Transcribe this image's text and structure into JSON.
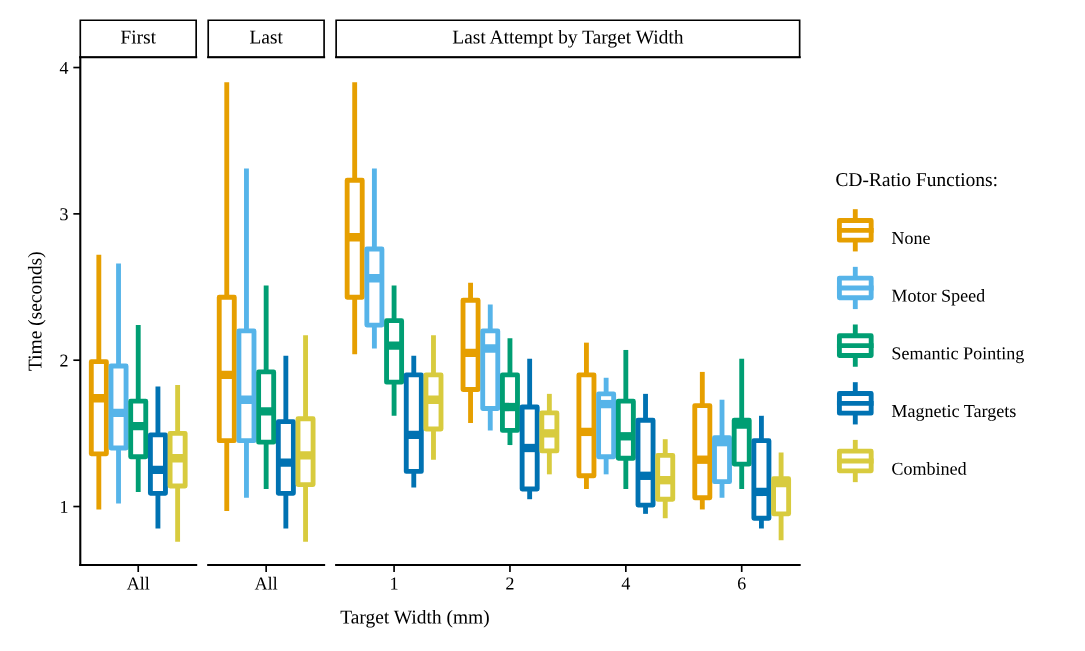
{
  "chart_data": [
    {
      "type": "box",
      "title": "First",
      "ylabel": "Time (seconds)",
      "categories": [
        "All"
      ],
      "ylim": [
        0.6,
        4.07
      ],
      "yticks": [
        1,
        2,
        3,
        4
      ],
      "legend": "right",
      "legend_title": "CD-Ratio Functions:",
      "series": [
        {
          "name": "None",
          "color": "#e69f00",
          "boxes": [
            {
              "low": 0.98,
              "q1": 1.36,
              "median": 1.74,
              "q3": 1.99,
              "high": 2.72
            }
          ]
        },
        {
          "name": "Motor Speed",
          "color": "#56b4e9",
          "boxes": [
            {
              "low": 1.02,
              "q1": 1.4,
              "median": 1.64,
              "q3": 1.96,
              "high": 2.66
            }
          ]
        },
        {
          "name": "Semantic Pointing",
          "color": "#009e73",
          "boxes": [
            {
              "low": 1.1,
              "q1": 1.34,
              "median": 1.55,
              "q3": 1.72,
              "high": 2.24
            }
          ]
        },
        {
          "name": "Magnetic Targets",
          "color": "#0072b2",
          "boxes": [
            {
              "low": 0.85,
              "q1": 1.09,
              "median": 1.25,
              "q3": 1.49,
              "high": 1.82
            }
          ]
        },
        {
          "name": "Combined",
          "color": "#d8cb3e",
          "boxes": [
            {
              "low": 0.76,
              "q1": 1.14,
              "median": 1.33,
              "q3": 1.5,
              "high": 1.83
            }
          ]
        }
      ]
    },
    {
      "type": "box",
      "title": "Last",
      "categories": [
        "All"
      ],
      "ylim": [
        0.6,
        4.07
      ],
      "tick_labels": "x",
      "series": [
        {
          "color": "#e69f00",
          "boxes": [
            {
              "low": 0.97,
              "q1": 1.45,
              "median": 1.9,
              "q3": 2.43,
              "high": 3.9
            }
          ]
        },
        {
          "color": "#56b4e9",
          "boxes": [
            {
              "low": 1.06,
              "q1": 1.45,
              "median": 1.73,
              "q3": 2.2,
              "high": 3.31
            }
          ]
        },
        {
          "color": "#009e73",
          "boxes": [
            {
              "low": 1.12,
              "q1": 1.44,
              "median": 1.65,
              "q3": 1.92,
              "high": 2.51
            }
          ]
        },
        {
          "color": "#0072b2",
          "boxes": [
            {
              "low": 0.85,
              "q1": 1.09,
              "median": 1.3,
              "q3": 1.58,
              "high": 2.03
            }
          ]
        },
        {
          "color": "#d8cb3e",
          "boxes": [
            {
              "low": 0.76,
              "q1": 1.15,
              "median": 1.35,
              "q3": 1.6,
              "high": 2.17
            }
          ]
        }
      ]
    },
    {
      "type": "box",
      "title": "Last Attempt by Target Width",
      "xlabel": "Target Width (mm)",
      "categories": [
        "1",
        "2",
        "4",
        "6"
      ],
      "ylim": [
        0.6,
        4.07
      ],
      "tick_labels": "x",
      "series": [
        {
          "color": "#e69f00",
          "boxes": [
            {
              "low": 2.04,
              "q1": 2.43,
              "median": 2.84,
              "q3": 3.23,
              "high": 3.9
            },
            {
              "low": 1.57,
              "q1": 1.8,
              "median": 2.05,
              "q3": 2.41,
              "high": 2.53
            },
            {
              "low": 1.12,
              "q1": 1.21,
              "median": 1.51,
              "q3": 1.9,
              "high": 2.12
            },
            {
              "low": 0.98,
              "q1": 1.06,
              "median": 1.32,
              "q3": 1.69,
              "high": 1.92
            }
          ]
        },
        {
          "color": "#56b4e9",
          "boxes": [
            {
              "low": 2.08,
              "q1": 2.24,
              "median": 2.56,
              "q3": 2.76,
              "high": 3.31
            },
            {
              "low": 1.52,
              "q1": 1.67,
              "median": 2.08,
              "q3": 2.2,
              "high": 2.38
            },
            {
              "low": 1.22,
              "q1": 1.34,
              "median": 1.7,
              "q3": 1.77,
              "high": 1.88
            },
            {
              "low": 1.06,
              "q1": 1.17,
              "median": 1.44,
              "q3": 1.47,
              "high": 1.73
            }
          ]
        },
        {
          "color": "#009e73",
          "boxes": [
            {
              "low": 1.62,
              "q1": 1.85,
              "median": 2.1,
              "q3": 2.27,
              "high": 2.51
            },
            {
              "low": 1.42,
              "q1": 1.52,
              "median": 1.68,
              "q3": 1.9,
              "high": 2.15
            },
            {
              "low": 1.12,
              "q1": 1.33,
              "median": 1.48,
              "q3": 1.72,
              "high": 2.07
            },
            {
              "low": 1.12,
              "q1": 1.29,
              "median": 1.56,
              "q3": 1.59,
              "high": 2.01
            }
          ]
        },
        {
          "color": "#0072b2",
          "boxes": [
            {
              "low": 1.13,
              "q1": 1.24,
              "median": 1.49,
              "q3": 1.9,
              "high": 2.03
            },
            {
              "low": 1.05,
              "q1": 1.12,
              "median": 1.4,
              "q3": 1.68,
              "high": 2.01
            },
            {
              "low": 0.95,
              "q1": 1.01,
              "median": 1.21,
              "q3": 1.59,
              "high": 1.77
            },
            {
              "low": 0.85,
              "q1": 0.92,
              "median": 1.1,
              "q3": 1.45,
              "high": 1.62
            }
          ]
        },
        {
          "color": "#d8cb3e",
          "boxes": [
            {
              "low": 1.32,
              "q1": 1.53,
              "median": 1.73,
              "q3": 1.9,
              "high": 2.17
            },
            {
              "low": 1.22,
              "q1": 1.38,
              "median": 1.5,
              "q3": 1.64,
              "high": 1.77
            },
            {
              "low": 0.92,
              "q1": 1.05,
              "median": 1.18,
              "q3": 1.35,
              "high": 1.46
            },
            {
              "low": 0.77,
              "q1": 0.95,
              "median": 1.16,
              "q3": 1.19,
              "high": 1.37
            }
          ]
        }
      ]
    }
  ]
}
